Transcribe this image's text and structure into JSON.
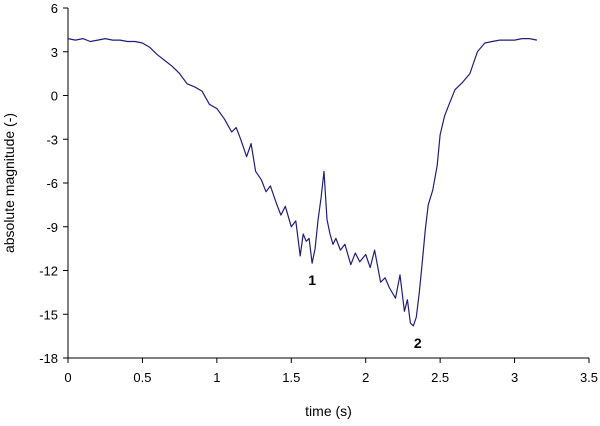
{
  "chart_data": {
    "type": "line",
    "xlabel": "time (s)",
    "ylabel": "absolute magnitude (-)",
    "xlim": [
      0,
      3.5
    ],
    "ylim": [
      -18,
      6
    ],
    "x_ticks": [
      "0",
      "0.5",
      "1",
      "1.5",
      "2",
      "2.5",
      "3",
      "3.5"
    ],
    "y_ticks": [
      "6",
      "3",
      "0",
      "-3",
      "-6",
      "-9",
      "-12",
      "-15",
      "-18"
    ],
    "grid": false,
    "legend": "none",
    "line_color": "#1f1f7a",
    "series": [
      {
        "x": [
          0.0,
          0.05,
          0.1,
          0.15,
          0.2,
          0.25,
          0.3,
          0.35,
          0.4,
          0.45,
          0.5,
          0.55,
          0.6,
          0.65,
          0.7,
          0.75,
          0.8,
          0.85,
          0.9,
          0.95,
          1.0,
          1.05,
          1.1,
          1.13,
          1.16,
          1.2,
          1.23,
          1.26,
          1.3,
          1.33,
          1.36,
          1.4,
          1.43,
          1.46,
          1.5,
          1.53,
          1.56,
          1.58,
          1.6,
          1.62,
          1.64,
          1.66,
          1.68,
          1.7,
          1.72,
          1.74,
          1.76,
          1.78,
          1.8,
          1.83,
          1.86,
          1.9,
          1.93,
          1.96,
          2.0,
          2.03,
          2.06,
          2.1,
          2.13,
          2.16,
          2.2,
          2.23,
          2.26,
          2.28,
          2.3,
          2.32,
          2.34,
          2.36,
          2.38,
          2.4,
          2.42,
          2.45,
          2.48,
          2.5,
          2.53,
          2.56,
          2.6,
          2.65,
          2.7,
          2.75,
          2.8,
          2.85,
          2.9,
          2.95,
          3.0,
          3.05,
          3.1,
          3.15
        ],
        "y": [
          3.9,
          3.8,
          3.9,
          3.7,
          3.8,
          3.9,
          3.8,
          3.8,
          3.7,
          3.7,
          3.6,
          3.3,
          2.8,
          2.4,
          2.0,
          1.5,
          0.8,
          0.6,
          0.3,
          -0.6,
          -0.9,
          -1.6,
          -2.5,
          -2.2,
          -3.0,
          -4.2,
          -3.3,
          -5.2,
          -5.8,
          -6.6,
          -6.2,
          -7.4,
          -8.2,
          -7.6,
          -9.0,
          -8.6,
          -11.0,
          -9.5,
          -10.0,
          -9.8,
          -11.5,
          -10.5,
          -8.5,
          -7.0,
          -5.2,
          -8.5,
          -9.5,
          -10.2,
          -9.8,
          -10.6,
          -10.2,
          -11.6,
          -10.8,
          -11.4,
          -10.9,
          -11.8,
          -10.6,
          -12.8,
          -12.5,
          -13.2,
          -13.9,
          -12.3,
          -14.8,
          -14.0,
          -15.6,
          -15.8,
          -15.2,
          -13.5,
          -11.4,
          -9.2,
          -7.5,
          -6.5,
          -4.8,
          -2.7,
          -1.4,
          -0.6,
          0.4,
          0.9,
          1.5,
          3.0,
          3.6,
          3.7,
          3.8,
          3.8,
          3.8,
          3.9,
          3.9,
          3.8
        ]
      }
    ],
    "annotations": [
      {
        "text": "1",
        "x": 1.64,
        "y": -11.5
      },
      {
        "text": "2",
        "x": 2.35,
        "y": -15.8
      }
    ]
  }
}
